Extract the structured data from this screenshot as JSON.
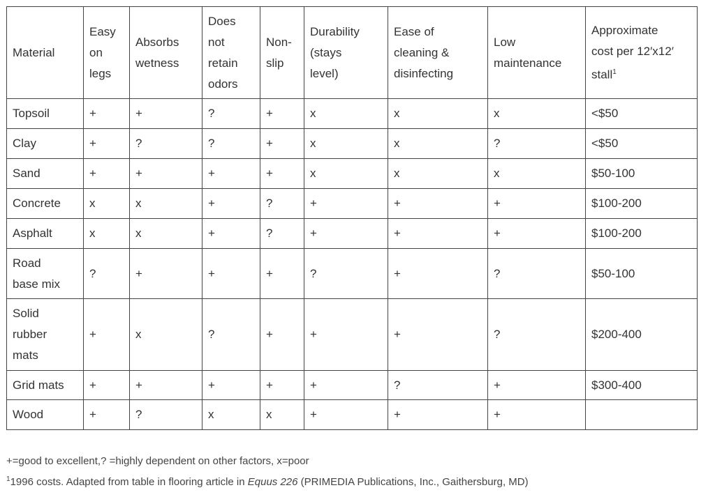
{
  "table": {
    "header": [
      [
        "Material"
      ],
      [
        "Easy",
        "on",
        "legs"
      ],
      [
        "Absorbs",
        "wetness"
      ],
      [
        "Does",
        "not",
        "retain",
        "odors"
      ],
      [
        "Non-",
        "slip"
      ],
      [
        "Durability",
        "(stays",
        "level)"
      ],
      [
        "Ease of",
        "cleaning &",
        "disinfecting"
      ],
      [
        "Low",
        "maintenance"
      ],
      [
        "Approximate",
        "cost per 12′x12′",
        "stall"
      ]
    ],
    "header_note_marker": "1",
    "rows": [
      [
        [
          "Topsoil"
        ],
        "+",
        "+",
        "?",
        "+",
        "x",
        "x",
        "x",
        "<$50"
      ],
      [
        [
          "Clay"
        ],
        "+",
        "?",
        "?",
        "+",
        "x",
        "x",
        "?",
        "<$50"
      ],
      [
        [
          "Sand"
        ],
        "+",
        "+",
        "+",
        "+",
        "x",
        "x",
        "x",
        "$50-100"
      ],
      [
        [
          "Concrete"
        ],
        "x",
        "x",
        "+",
        "?",
        "+",
        "+",
        "+",
        "$100-200"
      ],
      [
        [
          "Asphalt"
        ],
        "x",
        "x",
        "+",
        "?",
        "+",
        "+",
        "+",
        "$100-200"
      ],
      [
        [
          "Road",
          "base mix"
        ],
        "?",
        "+",
        "+",
        "+",
        "?",
        "+",
        "?",
        "$50-100"
      ],
      [
        [
          "Solid",
          "rubber",
          "mats"
        ],
        "+",
        "x",
        "?",
        "+",
        "+",
        "+",
        "?",
        "$200-400"
      ],
      [
        [
          "Grid mats"
        ],
        "+",
        "+",
        "+",
        "+",
        "+",
        "?",
        "+",
        "$300-400"
      ],
      [
        [
          "Wood"
        ],
        "+",
        "?",
        "x",
        "x",
        "+",
        "+",
        "+",
        null
      ]
    ]
  },
  "legend": "+=good to excellent,? =highly dependent on other factors, x=poor",
  "footnote": {
    "marker": "1",
    "text_before": "1996 costs. Adapted from table in flooring article in ",
    "italic": "Equus 226",
    "text_after": " (PRIMEDIA Publications, Inc., Gaithersburg, MD)"
  }
}
